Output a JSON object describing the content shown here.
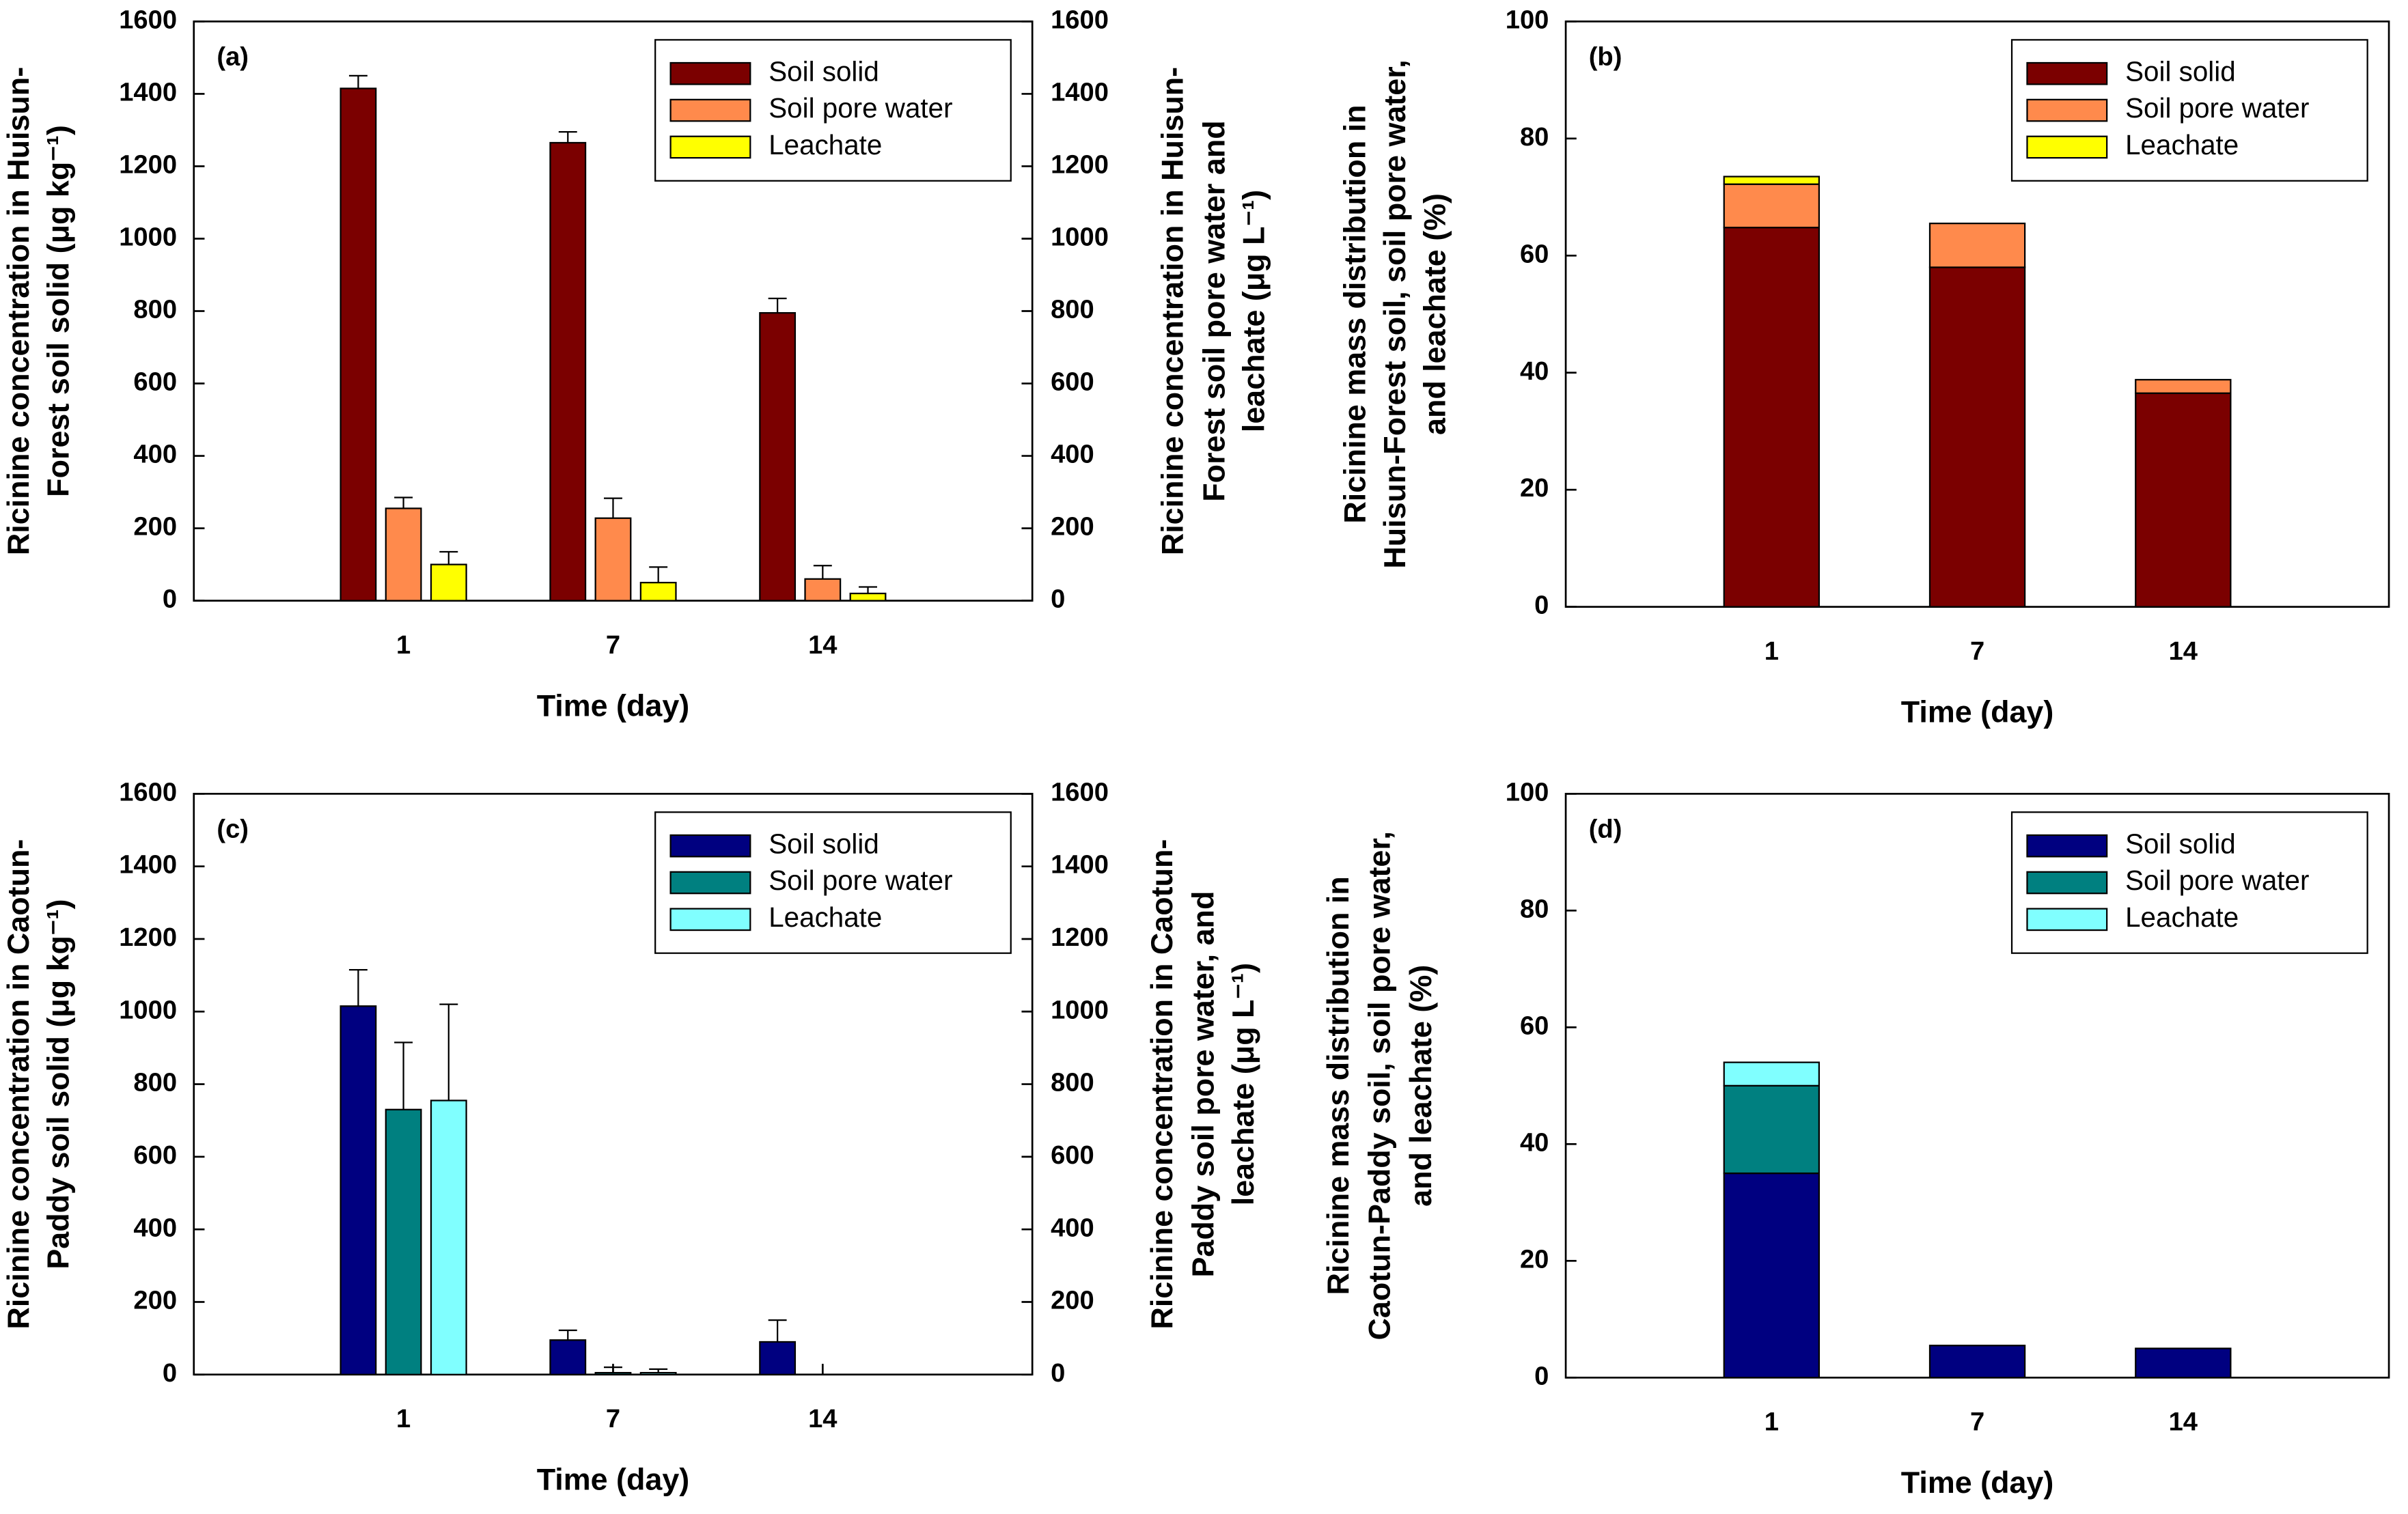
{
  "chart_data": [
    {
      "type": "bar",
      "panel_label": "(a)",
      "categories": [
        "1",
        "7",
        "14"
      ],
      "series": [
        {
          "name": "Soil solid",
          "color": "#7b0000",
          "values": [
            1415,
            1265,
            795
          ],
          "errors": [
            35,
            30,
            40
          ]
        },
        {
          "name": "Soil pore water",
          "color": "#ff8a4c",
          "values": [
            255,
            228,
            60
          ],
          "errors": [
            30,
            55,
            37
          ],
          "axis": "y2"
        },
        {
          "name": "Leachate",
          "color": "#ffff00",
          "values": [
            100,
            50,
            20
          ],
          "errors": [
            35,
            43,
            18
          ],
          "axis": "y2"
        }
      ],
      "xlabel": "Time (day)",
      "ylabel": [
        "Ricinine concentration in Huisun-",
        "Forest soil solid (μg kg⁻¹)"
      ],
      "y2label": [
        "Ricinine concentration in Huisun-",
        "Forest soil pore water and",
        "leachate (μg L⁻¹)"
      ],
      "ylim": [
        0,
        1600
      ],
      "yticks": [
        0,
        200,
        400,
        600,
        800,
        1000,
        1200,
        1400,
        1600
      ],
      "y2lim": [
        0,
        1600
      ],
      "y2ticks": [
        0,
        200,
        400,
        600,
        800,
        1000,
        1200,
        1400,
        1600
      ],
      "legend": "upper right"
    },
    {
      "type": "stacked_bar",
      "panel_label": "(b)",
      "categories": [
        "1",
        "7",
        "14"
      ],
      "series": [
        {
          "name": "Soil solid",
          "color": "#7b0000",
          "values": [
            64.8,
            58,
            36.5
          ]
        },
        {
          "name": "Soil pore water",
          "color": "#ff8a4c",
          "values": [
            7.4,
            7.5,
            2.3
          ]
        },
        {
          "name": "Leachate",
          "color": "#ffff00",
          "values": [
            1.3,
            0,
            0
          ]
        }
      ],
      "xlabel": "Time (day)",
      "ylabel": [
        "Ricinine mass distribution in",
        "Huisun-Forest soil, soil pore water,",
        "and leachate (%)"
      ],
      "ylim": [
        0,
        100
      ],
      "yticks": [
        0,
        20,
        40,
        60,
        80,
        100
      ],
      "legend": "upper right"
    },
    {
      "type": "bar",
      "panel_label": "(c)",
      "categories": [
        "1",
        "7",
        "14"
      ],
      "series": [
        {
          "name": "Soil solid",
          "color": "#000080",
          "values": [
            1015,
            95,
            90
          ],
          "errors": [
            100,
            27,
            60
          ]
        },
        {
          "name": "Soil pore water",
          "color": "#008080",
          "values": [
            730,
            5,
            0
          ],
          "errors": [
            185,
            15,
            0
          ],
          "axis": "y2"
        },
        {
          "name": "Leachate",
          "color": "#80ffff",
          "values": [
            755,
            5,
            0
          ],
          "errors": [
            265,
            10,
            0
          ],
          "axis": "y2"
        }
      ],
      "xlabel": "Time (day)",
      "ylabel": [
        "Ricinine concentration in Caotun-",
        "Paddy soil solid (μg kg⁻¹)"
      ],
      "y2label": [
        "Ricinine concentration in Caotun-",
        "Paddy soil pore water, and",
        "leachate (μg L⁻¹)"
      ],
      "ylim": [
        0,
        1600
      ],
      "yticks": [
        0,
        200,
        400,
        600,
        800,
        1000,
        1200,
        1400,
        1600
      ],
      "y2lim": [
        0,
        1600
      ],
      "y2ticks": [
        0,
        200,
        400,
        600,
        800,
        1000,
        1200,
        1400,
        1600
      ],
      "legend": "upper right"
    },
    {
      "type": "stacked_bar",
      "panel_label": "(d)",
      "categories": [
        "1",
        "7",
        "14"
      ],
      "series": [
        {
          "name": "Soil solid",
          "color": "#000080",
          "values": [
            35,
            5.5,
            5
          ]
        },
        {
          "name": "Soil pore water",
          "color": "#008080",
          "values": [
            15,
            0,
            0
          ]
        },
        {
          "name": "Leachate",
          "color": "#80ffff",
          "values": [
            4,
            0,
            0
          ]
        }
      ],
      "xlabel": "Time (day)",
      "ylabel": [
        "Ricinine mass distribution in",
        "Caotun-Paddy soil, soil pore water,",
        "and leachate (%)"
      ],
      "ylim": [
        0,
        100
      ],
      "yticks": [
        0,
        20,
        40,
        60,
        80,
        100
      ],
      "legend": "upper right"
    }
  ]
}
